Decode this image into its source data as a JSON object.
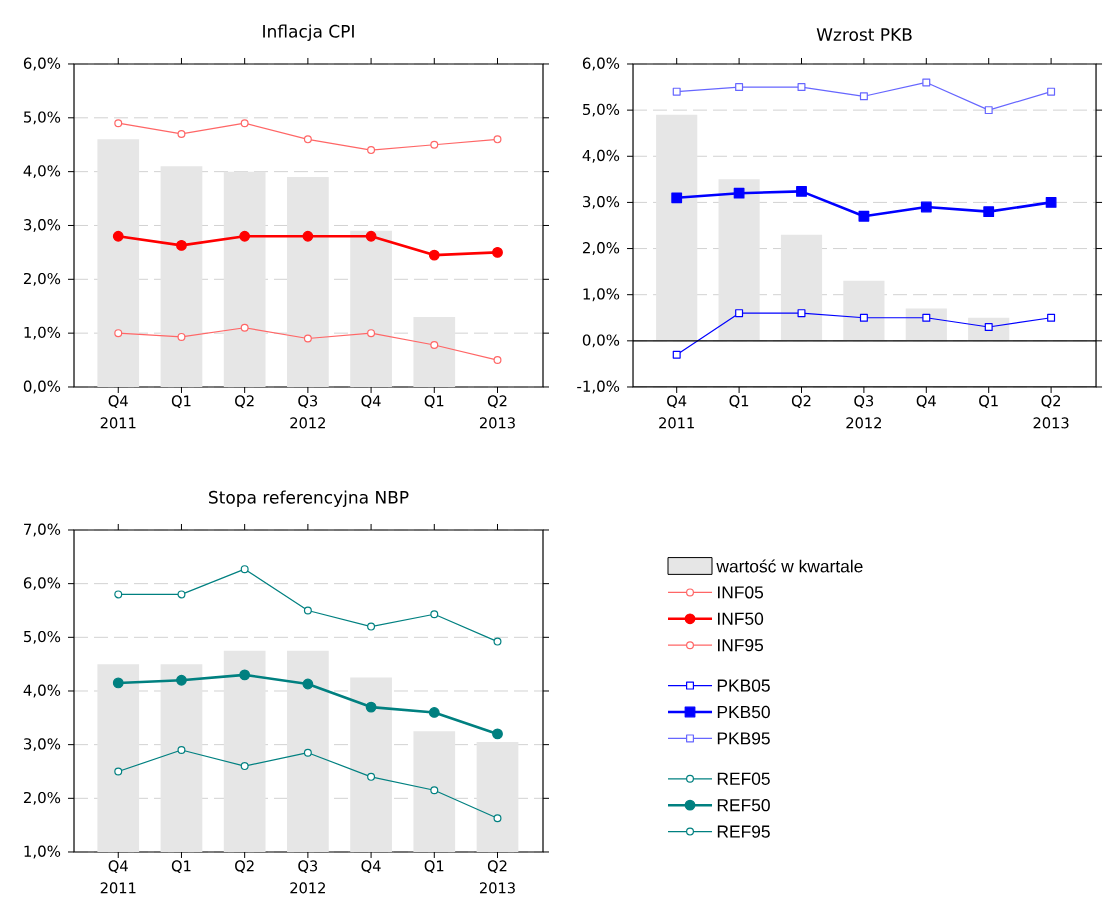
{
  "chart_data": [
    {
      "type": "bar",
      "title": "Inflacja CPI",
      "categories": [
        "Q4 2011",
        "Q1",
        "Q2",
        "Q3 2012",
        "Q4",
        "Q1",
        "Q2 2013"
      ],
      "ylim": [
        0,
        6
      ],
      "yticks": [
        {
          "value": 0,
          "label": "0,0%"
        },
        {
          "value": 1,
          "label": "1,0%"
        },
        {
          "value": 2,
          "label": "2,0%"
        },
        {
          "value": 3,
          "label": "3,0%"
        },
        {
          "value": 4,
          "label": "4,0%"
        },
        {
          "value": 5,
          "label": "5,0%"
        },
        {
          "value": 6,
          "label": "6,0%"
        }
      ],
      "grid": "y",
      "legend": "bottom right",
      "marker": "circle",
      "series": [
        {
          "name": "wartość w kwartale",
          "color": "#e6e6e6",
          "values": [
            4.6,
            4.1,
            4.0,
            3.9,
            2.9,
            1.3,
            null
          ]
        },
        {
          "type": "line",
          "name": "INF05",
          "color": "#ff6666",
          "values": [
            1.0,
            0.93,
            1.1,
            0.9,
            1.0,
            0.78,
            0.5
          ]
        },
        {
          "type": "line",
          "name": "INF50",
          "color": "#ff0000",
          "values": [
            2.8,
            2.63,
            2.8,
            2.8,
            2.8,
            2.45,
            2.5
          ]
        },
        {
          "type": "line",
          "name": "INF95",
          "color": "#ff6666",
          "values": [
            4.9,
            4.7,
            4.9,
            4.6,
            4.4,
            4.5,
            4.6
          ]
        }
      ]
    },
    {
      "type": "bar",
      "title": "Wzrost PKB",
      "categories": [
        "Q4 2011",
        "Q1",
        "Q2",
        "Q3 2012",
        "Q4",
        "Q1",
        "Q2 2013"
      ],
      "ylim": [
        -1,
        6
      ],
      "yticks": [
        {
          "value": -1,
          "label": "-1,0%"
        },
        {
          "value": 0,
          "label": "0,0%"
        },
        {
          "value": 1,
          "label": "1,0%"
        },
        {
          "value": 2,
          "label": "2,0%"
        },
        {
          "value": 3,
          "label": "3,0%"
        },
        {
          "value": 4,
          "label": "4,0%"
        },
        {
          "value": 5,
          "label": "5,0%"
        },
        {
          "value": 6,
          "label": "6,0%"
        }
      ],
      "grid": "y",
      "legend": "bottom left",
      "marker": "square",
      "ref_lines": [
        {
          "axis": "y",
          "value": 0,
          "color": "#000000"
        }
      ],
      "series": [
        {
          "color": "#e6e6e6",
          "values": [
            4.9,
            3.5,
            2.3,
            1.3,
            0.7,
            0.5,
            null
          ]
        },
        {
          "type": "line",
          "name": "PKB05",
          "color": "#0000ff",
          "values": [
            -0.3,
            0.6,
            0.6,
            0.5,
            0.5,
            0.3,
            0.5
          ]
        },
        {
          "type": "line",
          "name": "PKB50",
          "color": "#0000ff",
          "values": [
            3.1,
            3.2,
            3.24,
            2.7,
            2.9,
            2.8,
            3.0
          ]
        },
        {
          "type": "line",
          "name": "PKB95",
          "color": "#6666ff",
          "values": [
            5.4,
            5.5,
            5.5,
            5.3,
            5.6,
            5.0,
            5.4
          ]
        }
      ]
    },
    {
      "type": "bar",
      "title": "Stopa referencyjna NBP",
      "categories": [
        "Q4 2011",
        "Q1",
        "Q2",
        "Q3 2012",
        "Q4",
        "Q1",
        "Q2 2013"
      ],
      "ylim": [
        1,
        7
      ],
      "yticks": [
        {
          "value": 1,
          "label": "1,0%"
        },
        {
          "value": 2,
          "label": "2,0%"
        },
        {
          "value": 3,
          "label": "3,0%"
        },
        {
          "value": 4,
          "label": "4,0%"
        },
        {
          "value": 5,
          "label": "5,0%"
        },
        {
          "value": 6,
          "label": "6,0%"
        },
        {
          "value": 7,
          "label": "7,0%"
        }
      ],
      "grid": "y",
      "legend": "right",
      "marker": "circle",
      "series": [
        {
          "color": "#e6e6e6",
          "values": [
            4.5,
            4.5,
            4.75,
            4.75,
            4.25,
            3.25,
            3.05
          ]
        },
        {
          "type": "line",
          "name": "REF05",
          "color": "#008080",
          "values": [
            2.5,
            2.9,
            2.6,
            2.85,
            2.4,
            2.15,
            1.63
          ]
        },
        {
          "type": "line",
          "name": "REF50",
          "color": "#008080",
          "values": [
            4.15,
            4.2,
            4.3,
            4.13,
            3.7,
            3.6,
            3.2
          ]
        },
        {
          "type": "line",
          "name": "REF95",
          "color": "#008080",
          "values": [
            5.8,
            5.8,
            6.27,
            5.5,
            5.2,
            5.43,
            4.92
          ]
        }
      ]
    }
  ]
}
